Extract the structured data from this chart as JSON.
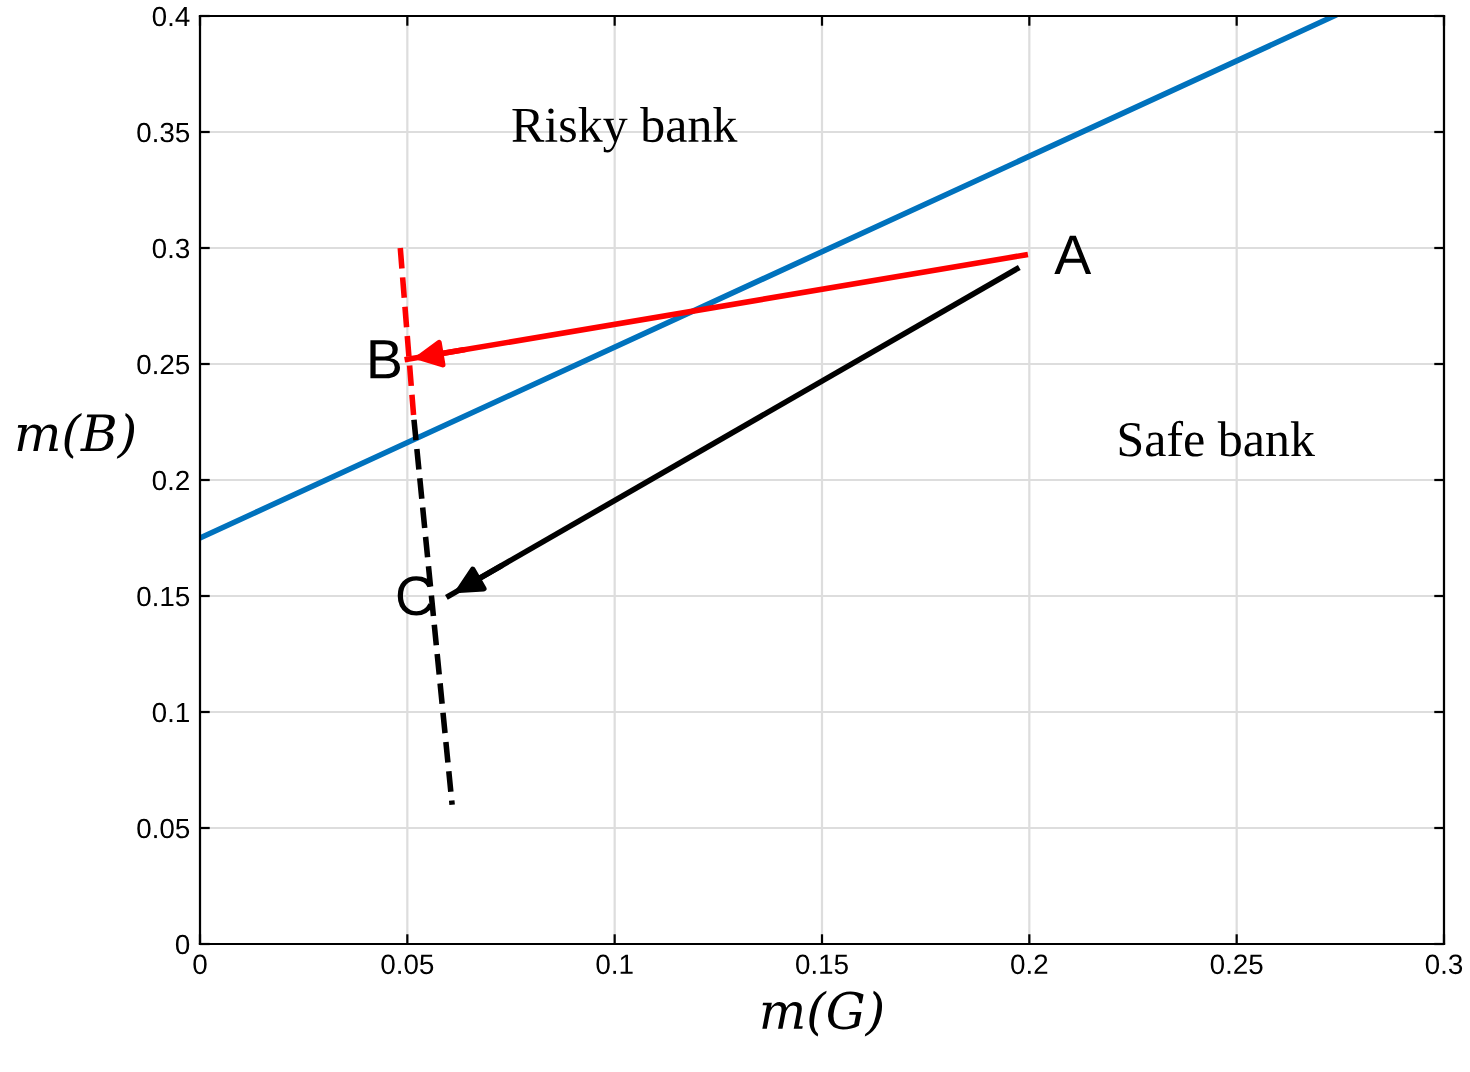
{
  "chart_data": {
    "type": "line",
    "xlabel": "m(G)",
    "ylabel": "m(B)",
    "xlim": [
      0,
      0.3
    ],
    "ylim": [
      0,
      0.4
    ],
    "xticks": [
      0,
      0.05,
      0.1,
      0.15,
      0.2,
      0.25,
      0.3
    ],
    "yticks": [
      0,
      0.05,
      0.1,
      0.15,
      0.2,
      0.25,
      0.3,
      0.35,
      0.4
    ],
    "grid": true,
    "marker": "none",
    "series": [
      {
        "color": "#0072bd",
        "line_style": "solid",
        "x": [
          0,
          0.2735
        ],
        "values": [
          0.175,
          0.4
        ]
      },
      {
        "color": "#ff0000",
        "line_style": "dashed",
        "x": [
          0.0483,
          0.0515
        ],
        "values": [
          0.3,
          0.228
        ]
      },
      {
        "color": "#000000",
        "line_style": "dashed",
        "x": [
          0.0516,
          0.0608
        ],
        "values": [
          0.226,
          0.06
        ]
      },
      {
        "color": "#ff0000",
        "line_style": "solid",
        "x": [
          0.199,
          0.05
        ],
        "values": [
          0.297,
          0.252
        ]
      },
      {
        "color": "#000000",
        "line_style": "solid",
        "x": [
          0.197,
          0.06
        ],
        "values": [
          0.291,
          0.15
        ]
      }
    ],
    "annotations": [
      "A",
      "B",
      "C",
      "Risky bank",
      "Safe bank"
    ]
  }
}
